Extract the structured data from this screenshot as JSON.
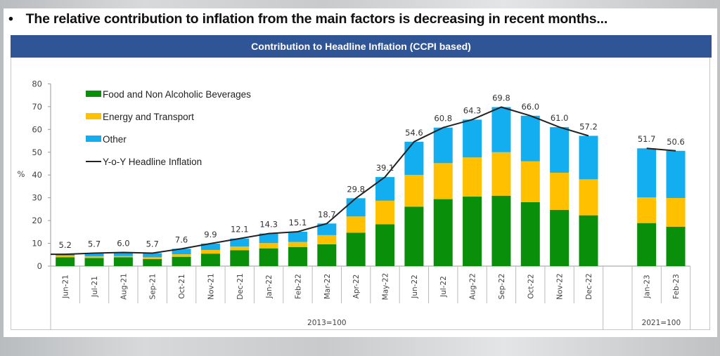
{
  "slide": {
    "bullet": "•",
    "title": "The relative contribution to inflation from the main factors is decreasing in recent months..."
  },
  "chart_data": {
    "type": "bar",
    "stacked": true,
    "title": "Contribution to Headline Inflation (CCPI based)",
    "ylabel": "%",
    "ylim": [
      0,
      80
    ],
    "yticks": [
      0,
      10,
      20,
      30,
      40,
      50,
      60,
      70,
      80
    ],
    "grid": false,
    "legend_position": "top-left",
    "categories": [
      "Jun-21",
      "Jul-21",
      "Aug-21",
      "Sep-21",
      "Oct-21",
      "Nov-21",
      "Dec-21",
      "Jan-22",
      "Feb-22",
      "Mar-22",
      "Apr-22",
      "May-22",
      "Jun-22",
      "Jul-22",
      "Aug-22",
      "Sep-22",
      "Oct-22",
      "Nov-22",
      "Dec-22",
      "Jan-23",
      "Feb-23"
    ],
    "groups": [
      {
        "label": "2013=100",
        "categories": [
          "Jun-21",
          "Jul-21",
          "Aug-21",
          "Sep-21",
          "Oct-21",
          "Nov-21",
          "Dec-21",
          "Jan-22",
          "Feb-22",
          "Mar-22",
          "Apr-22",
          "May-22",
          "Jun-22",
          "Jul-22",
          "Aug-22",
          "Sep-22",
          "Oct-22",
          "Nov-22",
          "Dec-22"
        ]
      },
      {
        "label": "2021=100",
        "categories": [
          "Jan-23",
          "Feb-23"
        ]
      }
    ],
    "series": [
      {
        "name": "Food and Non Alcoholic Beverages",
        "color": "#0a8f0a",
        "values": [
          3.9,
          3.6,
          3.9,
          3.1,
          4.1,
          5.5,
          7.0,
          7.8,
          8.4,
          9.6,
          14.7,
          18.4,
          26.1,
          29.4,
          30.5,
          30.9,
          28.1,
          24.7,
          22.3,
          18.9,
          17.3
        ]
      },
      {
        "name": "Energy and Transport",
        "color": "#ffc000",
        "values": [
          0.7,
          0.7,
          0.5,
          0.8,
          1.1,
          1.6,
          1.6,
          2.3,
          2.2,
          4.0,
          7.1,
          10.3,
          13.9,
          15.8,
          17.2,
          19.1,
          17.9,
          16.3,
          15.8,
          11.3,
          12.6
        ]
      },
      {
        "name": "Other",
        "color": "#12aef0",
        "values": [
          0.6,
          1.4,
          1.6,
          1.8,
          2.4,
          2.8,
          3.5,
          4.2,
          4.5,
          5.1,
          8.0,
          10.4,
          14.6,
          15.6,
          16.6,
          19.8,
          20.0,
          20.0,
          19.1,
          21.5,
          20.7
        ]
      }
    ],
    "line": {
      "name": "Y-o-Y Headline Inflation",
      "color": "#222222",
      "values": [
        5.2,
        5.7,
        6.0,
        5.7,
        7.6,
        9.9,
        12.1,
        14.3,
        15.1,
        18.7,
        29.8,
        39.1,
        54.6,
        60.8,
        64.3,
        69.8,
        66.0,
        61.0,
        57.2,
        51.7,
        50.6
      ],
      "data_labels": [
        "5.2",
        "5.7",
        "6.0",
        "5.7",
        "7.6",
        "9.9",
        "12.1",
        "14.3",
        "15.1",
        "18.7",
        "29.8",
        "39.1",
        "54.6",
        "60.8",
        "64.3",
        "69.8",
        "66.0",
        "61.0",
        "57.2",
        "51.7",
        "50.6"
      ]
    }
  }
}
